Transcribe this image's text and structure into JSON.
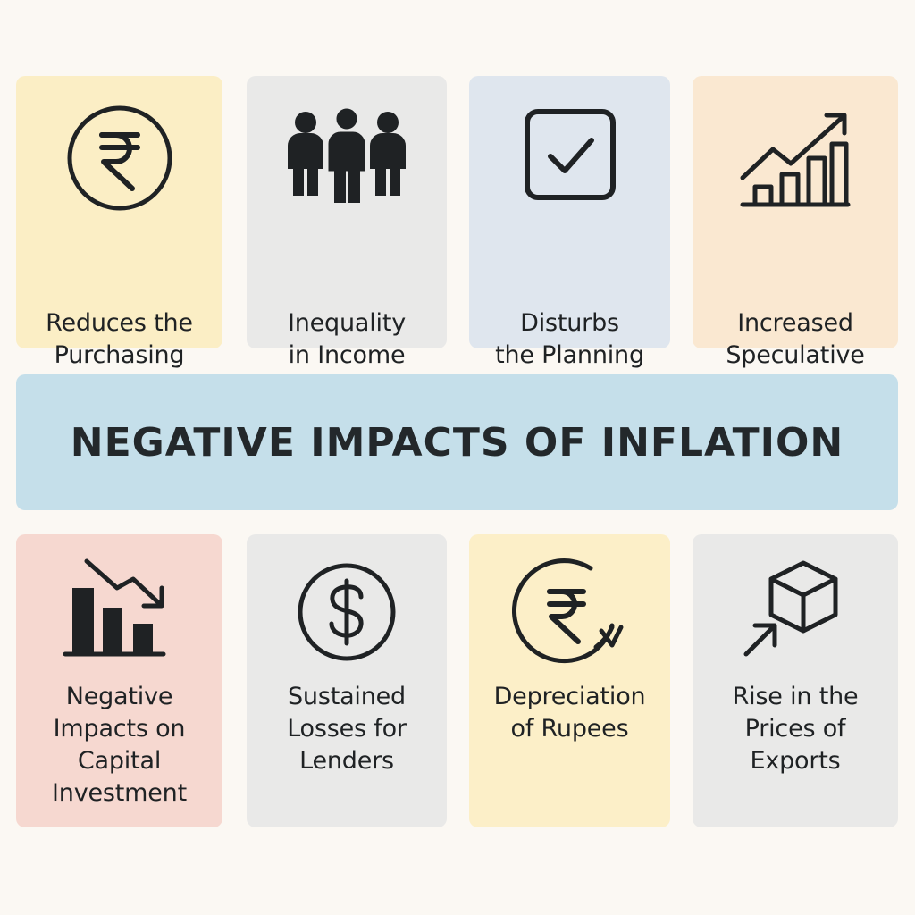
{
  "banner": {
    "title": "NEGATIVE IMPACTS OF INFLATION",
    "color": "#c5dfea"
  },
  "cards": [
    {
      "label": "Reduces the\nPurchasing\nPower",
      "icon": "rupee-circle-icon",
      "color": "#fbeec5"
    },
    {
      "label": "Inequality\nin Income\nDistribution",
      "icon": "people-icon",
      "color": "#e9e9e8"
    },
    {
      "label": "Disturbs\nthe Planning\nProcess",
      "icon": "checkbox-icon",
      "color": "#dfe6ee"
    },
    {
      "label": "Increased\nSpeculative\nInvestment",
      "icon": "rising-bar-chart-icon",
      "color": "#fae8d1"
    },
    {
      "label": "Negative\nImpacts on\nCapital\nInvestment",
      "icon": "falling-bar-chart-icon",
      "color": "#f6d8d0"
    },
    {
      "label": "Sustained\nLosses for\nLenders",
      "icon": "dollar-circle-icon",
      "color": "#e9e9e8"
    },
    {
      "label": "Depreciation\nof Rupees",
      "icon": "rupee-cycle-icon",
      "color": "#fcefc8"
    },
    {
      "label": "Rise in the\nPrices of\nExports",
      "icon": "box-export-icon",
      "color": "#e9e9e8"
    }
  ]
}
